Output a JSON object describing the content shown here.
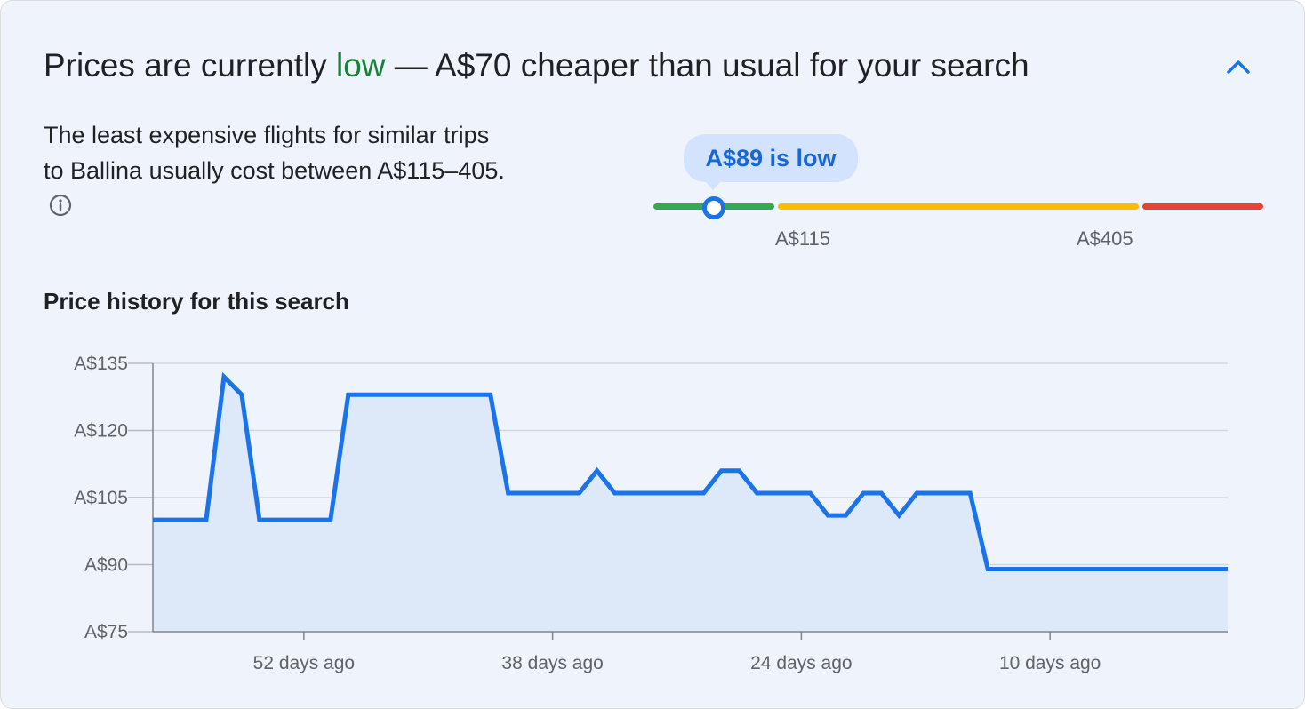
{
  "header": {
    "title_prefix": "Prices are currently ",
    "title_status": "low",
    "title_suffix": " — A$70 cheaper than usual for your search",
    "collapse_icon": "chevron-up-icon"
  },
  "summary": {
    "text": "The least expensive flights for similar trips to Ballina usually cost between A$115–405.",
    "info_icon": "info-icon"
  },
  "price_meter": {
    "bubble_label": "A$89 is low",
    "current_price": 89,
    "low_label": "A$115",
    "high_label": "A$405",
    "colors": {
      "low": "#34a853",
      "typical": "#fbbc04",
      "high": "#ea4335",
      "marker": "#1a73e8"
    }
  },
  "history": {
    "title": "Price history for this search"
  },
  "chart_data": {
    "type": "area",
    "title": "",
    "xlabel": "",
    "ylabel": "",
    "x_unit": "days ago",
    "ylim": [
      75,
      135
    ],
    "xlim": [
      60.5,
      0
    ],
    "yticks": [
      135,
      120,
      105,
      90,
      75
    ],
    "ytick_labels": [
      "A$135",
      "A$120",
      "A$105",
      "A$90",
      "A$75"
    ],
    "xticks": [
      52,
      38,
      24,
      10
    ],
    "xtick_labels": [
      "52 days ago",
      "38 days ago",
      "24 days ago",
      "10 days ago"
    ],
    "grid": true,
    "line_color": "#1a73e8",
    "fill_color": "#dde8f9",
    "points": [
      [
        60.5,
        100
      ],
      [
        57.5,
        100
      ],
      [
        56.5,
        132
      ],
      [
        55.5,
        128
      ],
      [
        54.5,
        100
      ],
      [
        50.5,
        100
      ],
      [
        49.5,
        128
      ],
      [
        41.5,
        128
      ],
      [
        40.5,
        106
      ],
      [
        36.5,
        106
      ],
      [
        35.5,
        111
      ],
      [
        34.5,
        106
      ],
      [
        29.5,
        106
      ],
      [
        28.5,
        111
      ],
      [
        27.5,
        111
      ],
      [
        26.5,
        106
      ],
      [
        23.5,
        106
      ],
      [
        22.5,
        101
      ],
      [
        21.5,
        101
      ],
      [
        20.5,
        106
      ],
      [
        19.5,
        106
      ],
      [
        18.5,
        101
      ],
      [
        17.5,
        106
      ],
      [
        14.5,
        106
      ],
      [
        13.5,
        89
      ],
      [
        0,
        89
      ]
    ]
  }
}
